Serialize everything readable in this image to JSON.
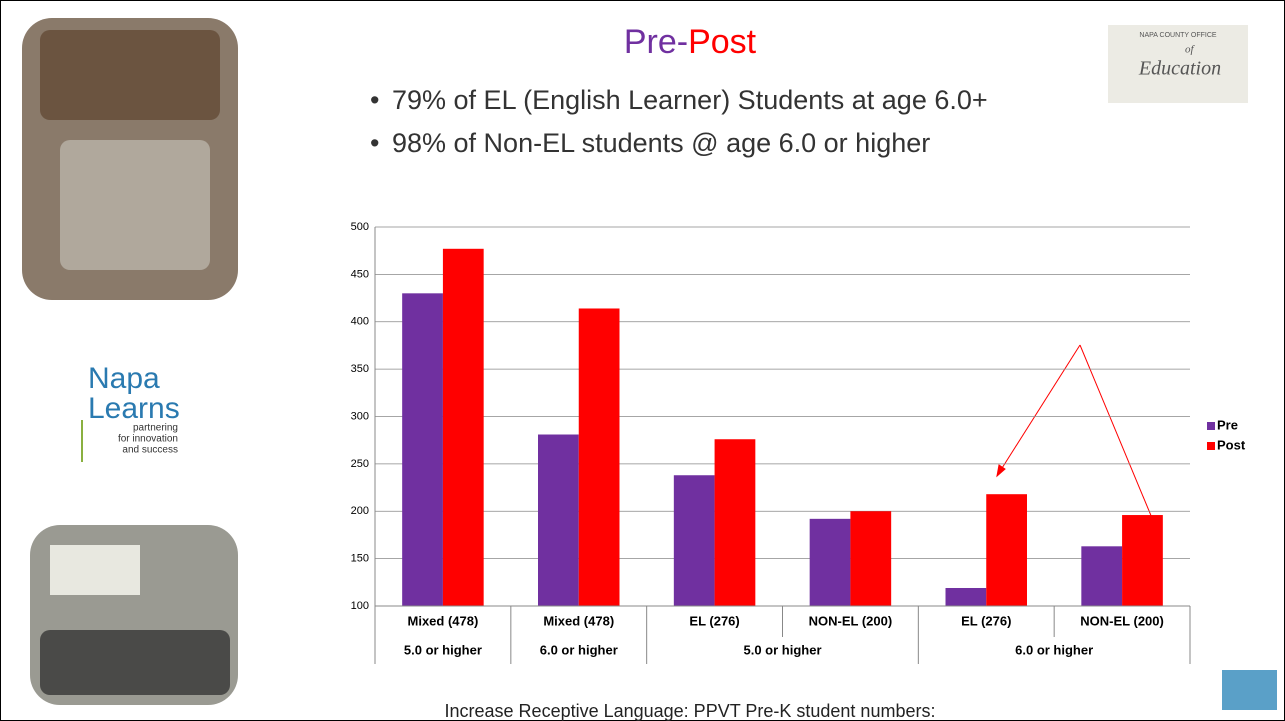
{
  "title_parts": [
    "Pre-",
    "Post"
  ],
  "bullets": [
    "79% of EL (English Learner) Students at age 6.0+",
    "98%  of Non-EL students @ age 6.0 or higher"
  ],
  "footer": "Increase Receptive Language: PPVT  Pre-K student numbers:",
  "logo_napa": {
    "lines": [
      "Napa",
      "Learns"
    ],
    "tagline": [
      "partnering",
      "for innovation",
      "and success"
    ]
  },
  "logo_ncoe": {
    "top": "NAPA COUNTY OFFICE",
    "of": "of",
    "name": "Education"
  },
  "chart_data": {
    "type": "bar",
    "categories": [
      "Mixed  (478)",
      "Mixed  (478)",
      "EL (276)",
      "NON-EL (200)",
      "EL (276)",
      "NON-EL (200)"
    ],
    "category_groups": [
      "5.0 or higher",
      "6.0 or higher",
      "5.0 or higher",
      "5.0 or higher",
      "6.0 or higher",
      "6.0 or higher"
    ],
    "series": [
      {
        "name": "Pre",
        "color": "#7030a0",
        "values": [
          430,
          281,
          238,
          192,
          119,
          163
        ]
      },
      {
        "name": "Post",
        "color": "#ff0000",
        "values": [
          477,
          414,
          276,
          200,
          218,
          196
        ]
      }
    ],
    "ylim": [
      100,
      500
    ],
    "yticks": [
      100,
      150,
      200,
      250,
      300,
      350,
      400,
      450,
      500
    ],
    "grid": true,
    "legend": "right"
  }
}
